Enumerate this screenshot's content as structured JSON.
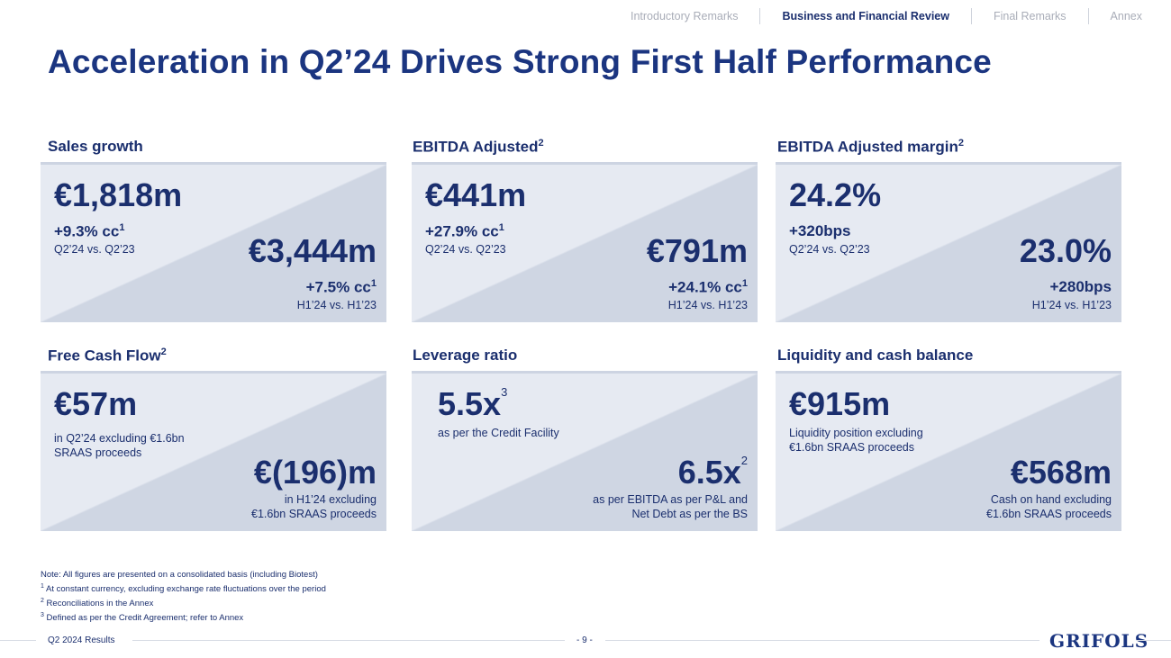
{
  "nav": {
    "items": [
      "Introductory Remarks",
      "Business and Financial Review",
      "Final Remarks",
      "Annex"
    ]
  },
  "title": "Acceleration in Q2’24 Drives Strong First Half Performance",
  "cards": {
    "sales": {
      "label": "Sales growth",
      "label_sup": "",
      "q_value": "€1,818m",
      "q_growth": "+9.3% cc",
      "q_growth_sup": "1",
      "q_caption": "Q2’24 vs. Q2’23",
      "h_value": "€3,444m",
      "h_growth": "+7.5% cc",
      "h_growth_sup": "1",
      "h_caption": "H1’24 vs. H1’23"
    },
    "ebitda": {
      "label": "EBITDA Adjusted",
      "label_sup": "2",
      "q_value": "€441m",
      "q_growth": "+27.9% cc",
      "q_growth_sup": "1",
      "q_caption": "Q2’24 vs. Q2’23",
      "h_value": "€791m",
      "h_growth": "+24.1% cc",
      "h_growth_sup": "1",
      "h_caption": "H1’24 vs. H1’23"
    },
    "margin": {
      "label": "EBITDA Adjusted margin",
      "label_sup": "2",
      "q_value": "24.2%",
      "q_growth": "+320bps",
      "q_caption": "Q2’24 vs. Q2’23",
      "h_value": "23.0%",
      "h_growth": "+280bps",
      "h_caption": "H1’24 vs. H1’23"
    },
    "fcf": {
      "label": "Free Cash Flow",
      "label_sup": "2",
      "q_value": "€57m",
      "q_caption_1": "in Q2’24 excluding €1.6bn",
      "q_caption_2": "SRAAS proceeds",
      "h_value": "€(196)m",
      "h_caption_1": "in H1’24 excluding",
      "h_caption_2": "€1.6bn SRAAS proceeds"
    },
    "leverage": {
      "label": "Leverage ratio",
      "q_value": "5.5x",
      "q_value_sup": "3",
      "q_caption_1": "as per the Credit Facility",
      "h_value": "6.5x",
      "h_value_sup": "2",
      "h_caption_1": "as per EBITDA as per P&L and",
      "h_caption_2": "Net Debt as per the BS"
    },
    "liquidity": {
      "label": "Liquidity and cash balance",
      "q_value": "€915m",
      "q_caption_1": "Liquidity position excluding",
      "q_caption_2": "€1.6bn SRAAS proceeds",
      "h_value": "€568m",
      "h_caption_1": "Cash on hand excluding",
      "h_caption_2": "€1.6bn SRAAS proceeds"
    }
  },
  "notes": [
    {
      "sup": "",
      "text": "Note: All figures are presented on a consolidated basis (including Biotest)"
    },
    {
      "sup": "1",
      "text": " At constant currency, excluding exchange rate fluctuations over the period"
    },
    {
      "sup": "2",
      "text": " Reconciliations in the Annex"
    },
    {
      "sup": "3",
      "text": " Defined as per the Credit Agreement; refer to Annex"
    }
  ],
  "footer": {
    "left": "Q2 2024 Results",
    "page": "- 9 -",
    "logo": "GRIFOLS"
  }
}
